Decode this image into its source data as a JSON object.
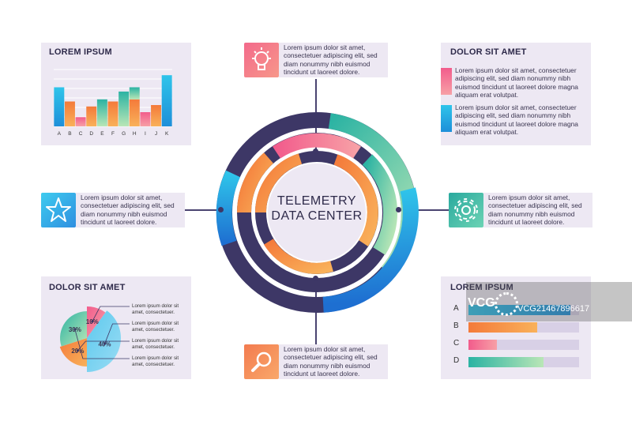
{
  "center": {
    "line1": "TELEMETRY",
    "line2": "DATA CENTER"
  },
  "lorem_text": "Lorem ipsum dolor sit amet, consectetuer adipiscing elit, sed diam nonummy nibh euismod tincidunt ut laoreet dolore.",
  "lorem_long": "Lorem ipsum dolor sit amet, consectetuer adipiscing elit, sed diam nonummy nibh euismod tincidunt ut laoreet dolore magna aliquam erat volutpat.",
  "callout_text": "Lorem ipsum dolor sit amet, consectetuer.",
  "panels": {
    "top_left_title": "LOREM IPSUM",
    "top_right_title": "DOLOR SIT AMET",
    "bottom_left_title": "DOLOR SIT AMET",
    "bottom_right_title": "LOREM IPSUM"
  },
  "icons": {
    "top": "lightbulb-icon",
    "left": "star-icon",
    "right": "gear-icon",
    "bottom": "magnifier-icon"
  },
  "chart_data": [
    {
      "type": "bar",
      "categories": [
        "A",
        "B",
        "C",
        "D",
        "E",
        "F",
        "G",
        "H",
        "I",
        "J",
        "K"
      ],
      "series": [
        {
          "values": [
            5.5,
            3.5,
            1.3,
            2.8,
            3.8,
            3.5,
            4.9,
            3.8,
            2.0,
            3.0,
            7.2
          ]
        },
        {
          "values": [
            0,
            0,
            0,
            0,
            0,
            0,
            0,
            5.5,
            0,
            0,
            0
          ]
        }
      ],
      "ylim": [
        0,
        8
      ]
    },
    {
      "type": "pie",
      "labels": [
        "10%",
        "40%",
        "20%",
        "30%"
      ],
      "values": [
        10,
        40,
        20,
        30
      ]
    },
    {
      "type": "bar",
      "orientation": "horizontal",
      "categories": [
        "A",
        "B",
        "C",
        "D"
      ],
      "values": [
        0.92,
        0.62,
        0.26,
        0.68
      ],
      "xlim": [
        0,
        1
      ]
    }
  ],
  "watermark": {
    "brand": "VCG",
    "id": "VCG21467896617"
  }
}
